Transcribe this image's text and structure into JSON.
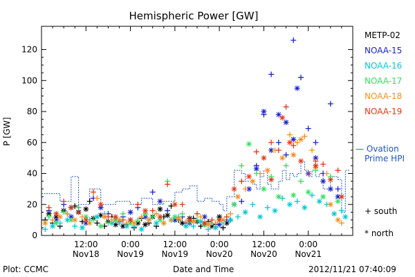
{
  "chart_data": {
    "type": "scatter",
    "title": "Hemispheric Power [GW]",
    "ylabel": "P [GW]",
    "xlabel": "Date and Time",
    "ylim": [
      0,
      135
    ],
    "yticks": [
      0,
      20,
      40,
      60,
      80,
      100,
      120
    ],
    "xlim_hours": [
      0,
      84
    ],
    "xticks": [
      {
        "hour": 12,
        "time": "12:00",
        "date": "Nov18"
      },
      {
        "hour": 24,
        "time": "0:00",
        "date": "Nov19"
      },
      {
        "hour": 36,
        "time": "12:00",
        "date": "Nov19"
      },
      {
        "hour": 48,
        "time": "0:00",
        "date": "Nov20"
      },
      {
        "hour": 60,
        "time": "12:00",
        "date": "Nov20"
      },
      {
        "hour": 72,
        "time": "0:00",
        "date": "Nov21"
      }
    ],
    "series": [
      {
        "name": "METP-02",
        "color": "#000000",
        "south": [
          [
            1,
            10
          ],
          [
            3,
            8
          ],
          [
            5,
            6
          ],
          [
            7,
            14
          ],
          [
            9,
            19
          ],
          [
            11,
            9
          ],
          [
            13,
            22
          ],
          [
            15,
            8
          ],
          [
            17,
            6
          ],
          [
            19,
            12
          ],
          [
            21,
            9
          ],
          [
            23,
            7
          ],
          [
            25,
            5
          ],
          [
            27,
            11
          ],
          [
            29,
            8
          ],
          [
            31,
            6
          ],
          [
            33,
            12
          ],
          [
            35,
            19
          ],
          [
            37,
            10
          ],
          [
            39,
            8
          ],
          [
            41,
            11
          ],
          [
            43,
            6
          ],
          [
            45,
            9
          ],
          [
            47,
            7
          ],
          [
            49,
            5
          ],
          [
            51,
            10
          ]
        ],
        "north": [
          [
            2,
            14
          ],
          [
            4,
            12
          ],
          [
            6,
            16
          ],
          [
            8,
            18
          ],
          [
            10,
            15
          ],
          [
            12,
            17
          ],
          [
            14,
            11
          ],
          [
            16,
            13
          ],
          [
            18,
            9
          ],
          [
            20,
            7
          ],
          [
            22,
            6
          ],
          [
            24,
            10
          ],
          [
            26,
            8
          ],
          [
            28,
            7
          ],
          [
            30,
            12
          ],
          [
            32,
            17
          ],
          [
            34,
            13
          ],
          [
            36,
            10
          ],
          [
            38,
            8
          ],
          [
            40,
            11
          ],
          [
            42,
            9
          ],
          [
            44,
            7
          ],
          [
            46,
            6
          ],
          [
            48,
            12
          ],
          [
            50,
            8
          ]
        ]
      },
      {
        "name": "NOAA-15",
        "color": "#1a22c8",
        "south": [
          [
            2,
            16
          ],
          [
            6,
            20
          ],
          [
            10,
            18
          ],
          [
            14,
            24
          ],
          [
            18,
            14
          ],
          [
            22,
            12
          ],
          [
            26,
            18
          ],
          [
            30,
            28
          ],
          [
            34,
            16
          ],
          [
            38,
            12
          ],
          [
            42,
            10
          ],
          [
            46,
            8
          ],
          [
            50,
            10
          ],
          [
            54,
            22
          ],
          [
            58,
            45
          ],
          [
            60,
            78
          ],
          [
            62,
            104
          ],
          [
            64,
            60
          ],
          [
            66,
            52
          ],
          [
            68,
            126
          ],
          [
            70,
            102
          ],
          [
            72,
            69
          ],
          [
            74,
            60
          ],
          [
            76,
            40
          ],
          [
            78,
            85
          ],
          [
            80,
            30
          ]
        ],
        "north": [
          [
            4,
            10
          ],
          [
            8,
            12
          ],
          [
            12,
            8
          ],
          [
            16,
            18
          ],
          [
            20,
            10
          ],
          [
            24,
            15
          ],
          [
            28,
            12
          ],
          [
            32,
            22
          ],
          [
            36,
            10
          ],
          [
            40,
            8
          ],
          [
            44,
            12
          ],
          [
            48,
            7
          ],
          [
            52,
            20
          ],
          [
            56,
            30
          ],
          [
            58,
            43
          ],
          [
            60,
            80
          ],
          [
            62,
            55
          ],
          [
            64,
            78
          ],
          [
            66,
            73
          ],
          [
            68,
            62
          ],
          [
            69,
            95
          ],
          [
            72,
            40
          ],
          [
            74,
            50
          ],
          [
            76,
            35
          ],
          [
            78,
            30
          ],
          [
            80,
            25
          ]
        ]
      },
      {
        "name": "NOAA-16",
        "color": "#00c8d8",
        "south": [
          [
            1,
            4
          ],
          [
            5,
            8
          ],
          [
            9,
            6
          ],
          [
            13,
            10
          ],
          [
            17,
            14
          ],
          [
            21,
            8
          ],
          [
            25,
            6
          ],
          [
            29,
            10
          ],
          [
            33,
            8
          ],
          [
            37,
            12
          ],
          [
            41,
            6
          ],
          [
            45,
            4
          ],
          [
            49,
            8
          ],
          [
            53,
            12
          ],
          [
            57,
            20
          ],
          [
            61,
            18
          ],
          [
            65,
            24
          ],
          [
            69,
            22
          ],
          [
            73,
            26
          ],
          [
            77,
            20
          ],
          [
            81,
            16
          ]
        ],
        "north": [
          [
            3,
            6
          ],
          [
            7,
            10
          ],
          [
            11,
            5
          ],
          [
            15,
            12
          ],
          [
            19,
            8
          ],
          [
            23,
            6
          ],
          [
            27,
            4
          ],
          [
            31,
            8
          ],
          [
            35,
            10
          ],
          [
            39,
            6
          ],
          [
            43,
            9
          ],
          [
            47,
            5
          ],
          [
            51,
            10
          ],
          [
            55,
            15
          ],
          [
            59,
            12
          ],
          [
            63,
            16
          ],
          [
            67,
            20
          ],
          [
            71,
            18
          ],
          [
            75,
            22
          ],
          [
            79,
            14
          ],
          [
            82,
            12
          ]
        ]
      },
      {
        "name": "NOAA-17",
        "color": "#30e060",
        "south": [
          [
            2,
            12
          ],
          [
            6,
            15
          ],
          [
            10,
            18
          ],
          [
            14,
            10
          ],
          [
            18,
            8
          ],
          [
            22,
            14
          ],
          [
            26,
            10
          ],
          [
            30,
            12
          ],
          [
            34,
            35
          ],
          [
            38,
            14
          ],
          [
            42,
            10
          ],
          [
            46,
            8
          ],
          [
            50,
            12
          ],
          [
            54,
            45
          ],
          [
            58,
            40
          ],
          [
            62,
            38
          ],
          [
            66,
            45
          ],
          [
            70,
            35
          ],
          [
            74,
            42
          ],
          [
            78,
            38
          ]
        ],
        "north": [
          [
            4,
            8
          ],
          [
            8,
            10
          ],
          [
            12,
            12
          ],
          [
            16,
            6
          ],
          [
            20,
            10
          ],
          [
            24,
            8
          ],
          [
            28,
            14
          ],
          [
            32,
            10
          ],
          [
            36,
            12
          ],
          [
            40,
            9
          ],
          [
            44,
            7
          ],
          [
            48,
            10
          ],
          [
            52,
            20
          ],
          [
            56,
            59
          ],
          [
            60,
            30
          ],
          [
            64,
            25
          ],
          [
            68,
            26
          ],
          [
            72,
            28
          ],
          [
            76,
            25
          ],
          [
            80,
            22
          ]
        ]
      },
      {
        "name": "NOAA-18",
        "color": "#f09020",
        "south": [
          [
            3,
            10
          ],
          [
            7,
            14
          ],
          [
            11,
            12
          ],
          [
            15,
            24
          ],
          [
            19,
            10
          ],
          [
            23,
            8
          ],
          [
            27,
            12
          ],
          [
            31,
            14
          ],
          [
            35,
            10
          ],
          [
            39,
            9
          ],
          [
            43,
            12
          ],
          [
            47,
            8
          ],
          [
            51,
            14
          ],
          [
            55,
            30
          ],
          [
            59,
            40
          ],
          [
            63,
            55
          ],
          [
            67,
            65
          ],
          [
            69,
            60
          ],
          [
            71,
            64
          ],
          [
            73,
            55
          ],
          [
            77,
            40
          ],
          [
            81,
            8
          ]
        ],
        "north": [
          [
            1,
            8
          ],
          [
            5,
            12
          ],
          [
            9,
            10
          ],
          [
            13,
            8
          ],
          [
            17,
            12
          ],
          [
            21,
            10
          ],
          [
            25,
            8
          ],
          [
            29,
            10
          ],
          [
            33,
            8
          ],
          [
            37,
            11
          ],
          [
            41,
            9
          ],
          [
            45,
            7
          ],
          [
            49,
            10
          ],
          [
            53,
            25
          ],
          [
            57,
            35
          ],
          [
            61,
            42
          ],
          [
            65,
            50
          ],
          [
            68,
            52
          ],
          [
            70,
            62
          ],
          [
            74,
            44
          ],
          [
            78,
            20
          ],
          [
            80,
            10
          ]
        ]
      },
      {
        "name": "NOAA-19",
        "color": "#e03818",
        "south": [
          [
            2,
            18
          ],
          [
            6,
            22
          ],
          [
            10,
            15
          ],
          [
            14,
            28
          ],
          [
            18,
            12
          ],
          [
            22,
            10
          ],
          [
            26,
            20
          ],
          [
            30,
            16
          ],
          [
            34,
            33
          ],
          [
            38,
            20
          ],
          [
            42,
            14
          ],
          [
            46,
            10
          ],
          [
            50,
            12
          ],
          [
            54,
            35
          ],
          [
            58,
            54
          ],
          [
            62,
            60
          ],
          [
            64,
            55
          ],
          [
            66,
            83
          ],
          [
            68,
            58
          ],
          [
            72,
            40
          ],
          [
            74,
            48
          ],
          [
            76,
            46
          ],
          [
            80,
            42
          ]
        ],
        "north": [
          [
            4,
            14
          ],
          [
            8,
            18
          ],
          [
            12,
            10
          ],
          [
            16,
            20
          ],
          [
            20,
            12
          ],
          [
            24,
            10
          ],
          [
            28,
            16
          ],
          [
            32,
            12
          ],
          [
            36,
            20
          ],
          [
            40,
            10
          ],
          [
            44,
            8
          ],
          [
            48,
            10
          ],
          [
            52,
            30
          ],
          [
            56,
            38
          ],
          [
            60,
            50
          ],
          [
            62,
            36
          ],
          [
            65,
            76
          ],
          [
            67,
            60
          ],
          [
            70,
            48
          ],
          [
            74,
            45
          ],
          [
            78,
            36
          ],
          [
            81,
            25
          ]
        ]
      }
    ],
    "ovation": {
      "color": "#1a55c4",
      "values": [
        [
          0,
          27
        ],
        [
          3,
          27
        ],
        [
          5,
          22
        ],
        [
          8,
          38
        ],
        [
          10,
          20
        ],
        [
          13,
          30
        ],
        [
          16,
          20
        ],
        [
          20,
          22
        ],
        [
          24,
          20
        ],
        [
          27,
          24
        ],
        [
          30,
          20
        ],
        [
          33,
          22
        ],
        [
          36,
          28
        ],
        [
          38,
          30
        ],
        [
          40,
          32
        ],
        [
          42,
          22
        ],
        [
          44,
          24
        ],
        [
          46,
          22
        ],
        [
          48,
          20
        ],
        [
          49,
          16
        ],
        [
          50,
          25
        ],
        [
          52,
          42
        ],
        [
          54,
          40
        ],
        [
          55,
          35
        ],
        [
          57,
          33
        ],
        [
          58,
          30
        ],
        [
          59,
          38
        ],
        [
          60,
          42
        ],
        [
          61,
          33
        ],
        [
          62,
          30
        ],
        [
          64,
          35
        ],
        [
          65,
          42
        ],
        [
          66,
          36
        ],
        [
          67,
          40
        ],
        [
          68,
          38
        ],
        [
          69,
          40
        ],
        [
          70,
          48
        ],
        [
          71,
          42
        ],
        [
          72,
          38
        ],
        [
          73,
          42
        ],
        [
          74,
          38
        ],
        [
          75,
          40
        ],
        [
          76,
          30
        ],
        [
          78,
          38
        ],
        [
          80,
          36
        ],
        [
          81,
          15
        ],
        [
          82,
          42
        ]
      ]
    }
  },
  "legend": {
    "series": [
      "METP-02",
      "NOAA-15",
      "NOAA-16",
      "NOAA-17",
      "NOAA-18",
      "NOAA-19"
    ],
    "colors": [
      "#000000",
      "#1a22c8",
      "#00c8d8",
      "#30e060",
      "#f09020",
      "#e03818"
    ],
    "ovation_line1": "— Ovation",
    "ovation_line2": "Prime HPI",
    "south_label": "+ south",
    "north_label": "* north"
  },
  "footer": {
    "left": "Plot: CCMC",
    "center": "Date and Time",
    "right": "2012/11/21  07:40:09"
  }
}
